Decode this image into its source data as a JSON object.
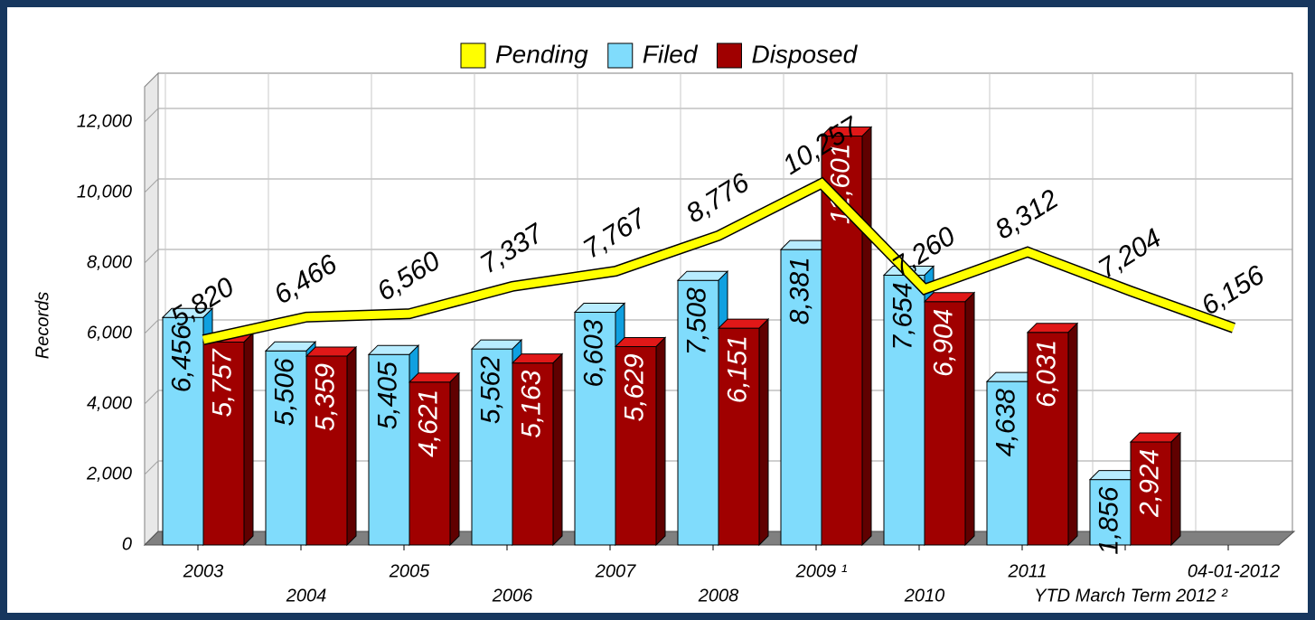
{
  "chart_data": {
    "type": "bar",
    "y_label": "Records",
    "categories": [
      "2003",
      "2004",
      "2005",
      "2006",
      "2007",
      "2008",
      "2009 ¹",
      "2010",
      "2011",
      "YTD March Term 2012 ²",
      "04-01-2012"
    ],
    "series": [
      {
        "name": "Pending",
        "type": "line",
        "color": "#ffff00",
        "values": [
          5820,
          6466,
          6560,
          7337,
          7767,
          8776,
          10257,
          7260,
          8312,
          7204,
          6156
        ],
        "value_labels": [
          "5,820",
          "6,466",
          "6,560",
          "7,337",
          "7,767",
          "8,776",
          "10,257",
          "7,260",
          "8,312",
          "7,204",
          "6,156"
        ]
      },
      {
        "name": "Filed",
        "type": "bar",
        "color": "#80dcfc",
        "values": [
          6456,
          5506,
          5405,
          5562,
          6603,
          7508,
          8381,
          7654,
          4638,
          1856,
          null
        ],
        "value_labels": [
          "6,456",
          "5,506",
          "5,405",
          "5,562",
          "6,603",
          "7,508",
          "8,381",
          "7,654",
          "4,638",
          "1,856",
          null
        ]
      },
      {
        "name": "Disposed",
        "type": "bar",
        "color": "#a00000",
        "values": [
          5757,
          5359,
          4621,
          5163,
          5629,
          6151,
          11601,
          6904,
          6031,
          2924,
          null
        ],
        "value_labels": [
          "5,757",
          "5,359",
          "4,621",
          "5,163",
          "5,629",
          "6,151",
          "11,601",
          "6,904",
          "6,031",
          "2,924",
          null
        ]
      }
    ],
    "ylim": [
      0,
      13000
    ],
    "yticks": [
      0,
      {
        "value": 2000,
        "label": "2,000"
      },
      {
        "value": 4000,
        "label": "4,000"
      },
      {
        "value": 6000,
        "label": "6,000"
      },
      {
        "value": 8000,
        "label": "8,000"
      },
      {
        "value": 10000,
        "label": "10,000"
      },
      {
        "value": 12000,
        "label": "12,000"
      }
    ],
    "grid": true,
    "legend": "top"
  }
}
